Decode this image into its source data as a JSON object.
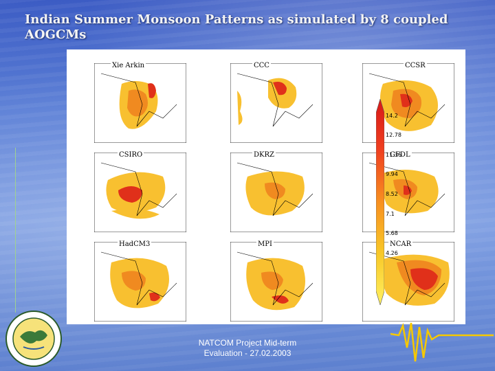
{
  "slide": {
    "title": "Indian Summer Monsoon Patterns as simulated by 8 coupled AOGCMs",
    "footer_line1": "NATCOM Project Mid-term",
    "footer_line2": "Evaluation - 27.02.2003"
  },
  "maps": [
    {
      "label": "Xie Arkin"
    },
    {
      "label": "CCC"
    },
    {
      "label": "CCSR"
    },
    {
      "label": "CSIRO"
    },
    {
      "label": "DKRZ"
    },
    {
      "label": "GFDL"
    },
    {
      "label": "HadCM3"
    },
    {
      "label": "MPI"
    },
    {
      "label": "NCAR"
    }
  ],
  "colorbar": {
    "ticks": [
      "14.2",
      "12.78",
      "11.36",
      "9.94",
      "8.52",
      "7.1",
      "5.68",
      "4.26"
    ],
    "colors": {
      "high": "#d81818",
      "mid": "#f89020",
      "low": "#fff060"
    }
  }
}
